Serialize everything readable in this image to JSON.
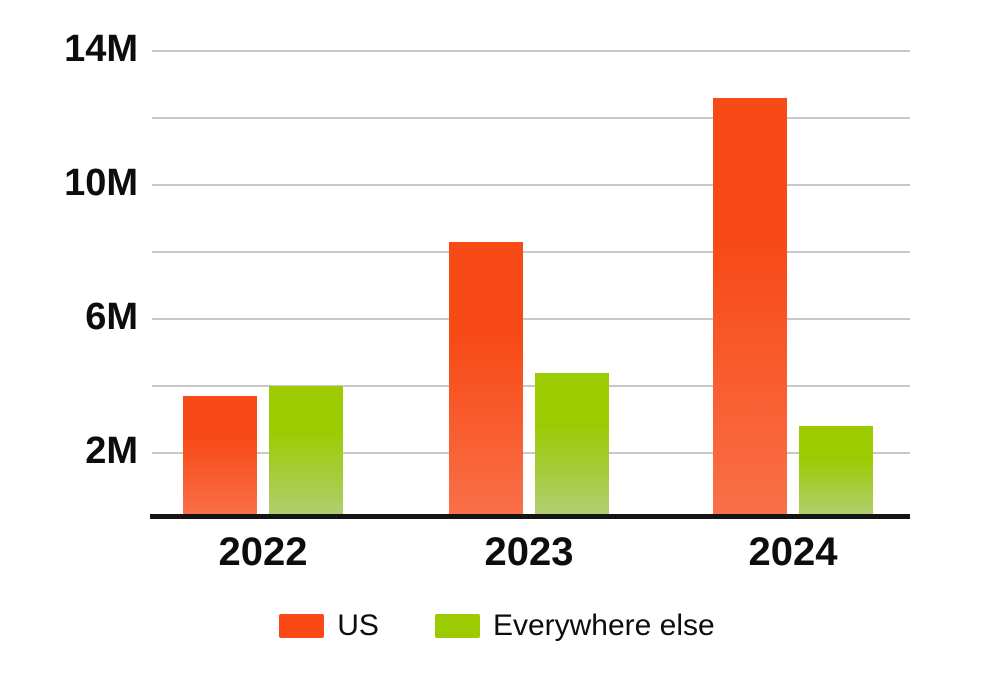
{
  "chart_data": {
    "type": "bar",
    "title": "",
    "categories": [
      "2022",
      "2023",
      "2024"
    ],
    "series": [
      {
        "name": "US",
        "values": [
          3.7,
          8.3,
          12.6
        ],
        "unit": "M",
        "color_top": "#f84a17",
        "color_bottom": "#f97048"
      },
      {
        "name": "Everywhere else",
        "values": [
          4.0,
          4.4,
          2.8
        ],
        "unit": "M",
        "color_top": "#9ccb02",
        "color_bottom": "#b0ce73"
      }
    ],
    "y_axis": {
      "min": 0,
      "max": 14,
      "gridline_step": 2,
      "labeled_ticks": [
        {
          "value": 14,
          "label": "14M"
        },
        {
          "value": 10,
          "label": "10M"
        },
        {
          "value": 6,
          "label": "6M"
        },
        {
          "value": 2,
          "label": "2M"
        }
      ]
    },
    "legend": {
      "position": "bottom",
      "items": [
        {
          "label": "US",
          "color": "#f84917"
        },
        {
          "label": "Everywhere else",
          "color": "#9ccb02"
        }
      ]
    },
    "grid": true,
    "background": "#ffffff",
    "gridline_color": "#c8c8c8",
    "axis_line_color": "#141414",
    "text_color": "#0d0d0d"
  }
}
